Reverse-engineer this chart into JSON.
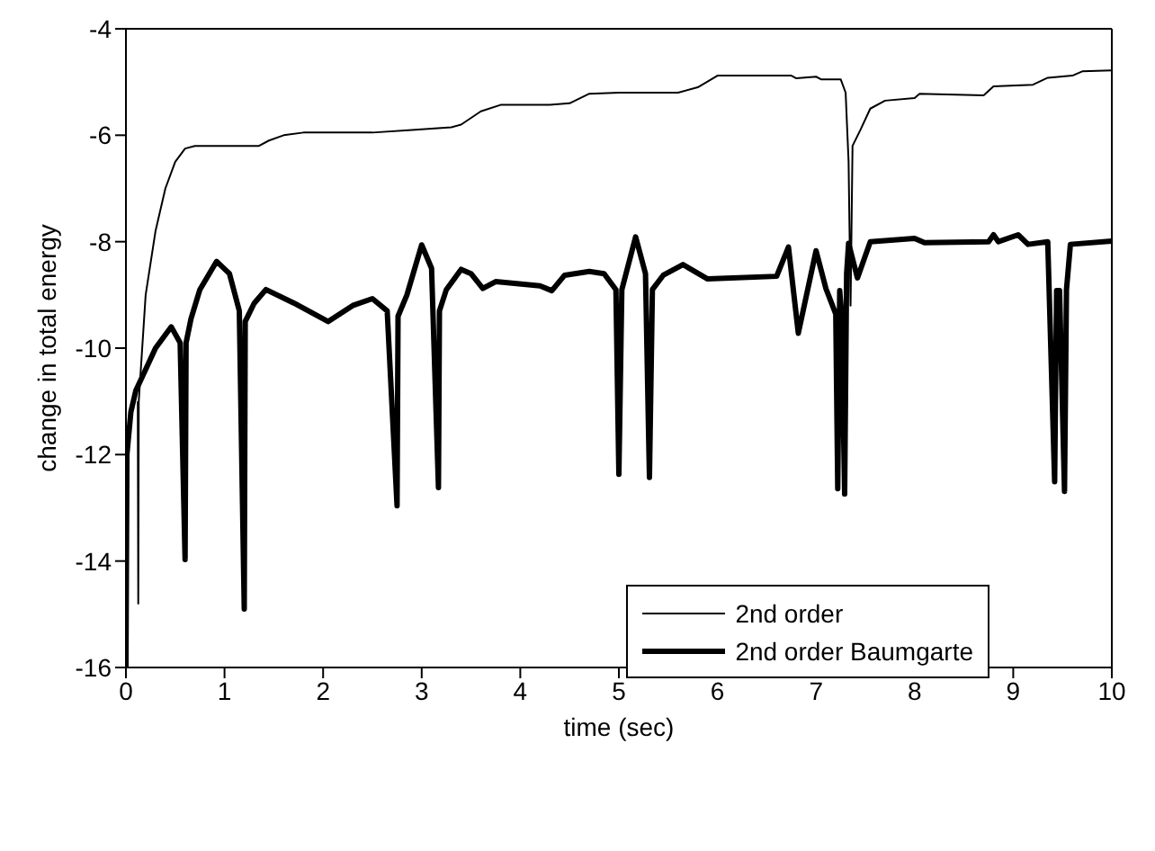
{
  "chart_data": {
    "type": "line",
    "xlabel": "time (sec)",
    "ylabel": "change in total energy",
    "xlim": [
      0,
      10
    ],
    "ylim": [
      -16,
      -4
    ],
    "xticks": [
      0,
      1,
      2,
      3,
      4,
      5,
      6,
      7,
      8,
      9,
      10
    ],
    "yticks": [
      -16,
      -14,
      -12,
      -10,
      -8,
      -6,
      -4
    ],
    "grid": false,
    "legend": "bottom right",
    "marker": "none",
    "line_style": "solid",
    "series": [
      {
        "name": "2nd order",
        "color": "#000000",
        "x": [
          0.12,
          0.125,
          0.13,
          0.2,
          0.3,
          0.4,
          0.5,
          0.6,
          0.7,
          1.0,
          1.35,
          1.45,
          1.6,
          1.8,
          2.5,
          2.9,
          3.3,
          3.4,
          3.6,
          3.8,
          4.3,
          4.5,
          4.7,
          5.0,
          5.6,
          5.8,
          6.0,
          6.5,
          6.75,
          6.8,
          7.0,
          7.05,
          7.25,
          7.3,
          7.33,
          7.35,
          7.37,
          7.45,
          7.55,
          7.7,
          8.0,
          8.05,
          8.7,
          8.8,
          9.2,
          9.35,
          9.6,
          9.7,
          10
        ],
        "values": [
          -11.0,
          -14.8,
          -11.0,
          -9.0,
          -7.8,
          -7.0,
          -6.5,
          -6.25,
          -6.2,
          -6.2,
          -6.2,
          -6.1,
          -6.0,
          -5.95,
          -5.95,
          -5.9,
          -5.85,
          -5.8,
          -5.55,
          -5.43,
          -5.43,
          -5.4,
          -5.22,
          -5.2,
          -5.2,
          -5.1,
          -4.88,
          -4.88,
          -4.88,
          -4.93,
          -4.9,
          -4.95,
          -4.95,
          -5.2,
          -6.5,
          -9.2,
          -6.2,
          -5.9,
          -5.5,
          -5.35,
          -5.3,
          -5.22,
          -5.25,
          -5.08,
          -5.05,
          -4.92,
          -4.88,
          -4.8,
          -4.78
        ]
      },
      {
        "name": "2nd order Baumgarte",
        "color": "#000000",
        "x": [
          0,
          0.01,
          0.05,
          0.1,
          0.2,
          0.3,
          0.46,
          0.55,
          0.6,
          0.61,
          0.66,
          0.75,
          0.92,
          1.05,
          1.15,
          1.2,
          1.21,
          1.3,
          1.42,
          1.7,
          2.05,
          2.3,
          2.5,
          2.65,
          2.75,
          2.76,
          2.85,
          3.0,
          3.1,
          3.17,
          3.18,
          3.25,
          3.4,
          3.5,
          3.62,
          3.75,
          4.2,
          4.32,
          4.45,
          4.7,
          4.85,
          4.97,
          5.0,
          5.03,
          5.17,
          5.27,
          5.31,
          5.34,
          5.45,
          5.65,
          5.9,
          6.6,
          6.72,
          6.82,
          7.0,
          7.1,
          7.2,
          7.22,
          7.24,
          7.26,
          7.29,
          7.31,
          7.33,
          7.42,
          7.55,
          8.0,
          8.1,
          8.75,
          8.8,
          8.85,
          9.05,
          9.15,
          9.35,
          9.42,
          9.44,
          9.47,
          9.52,
          9.54,
          9.58,
          10
        ],
        "values": [
          -16,
          -12.0,
          -11.2,
          -10.8,
          -10.4,
          -10.0,
          -9.6,
          -9.9,
          -13.97,
          -9.9,
          -9.45,
          -8.9,
          -8.37,
          -8.6,
          -9.3,
          -14.9,
          -9.5,
          -9.16,
          -8.9,
          -9.15,
          -9.5,
          -9.2,
          -9.07,
          -9.3,
          -12.96,
          -9.4,
          -9.0,
          -8.06,
          -8.5,
          -12.62,
          -9.3,
          -8.9,
          -8.52,
          -8.6,
          -8.88,
          -8.75,
          -8.83,
          -8.92,
          -8.63,
          -8.56,
          -8.6,
          -8.9,
          -12.37,
          -8.9,
          -7.91,
          -8.6,
          -12.43,
          -8.9,
          -8.63,
          -8.43,
          -8.7,
          -8.65,
          -8.1,
          -9.72,
          -8.17,
          -8.88,
          -9.36,
          -12.64,
          -8.92,
          -9.4,
          -12.74,
          -8.6,
          -8.03,
          -8.68,
          -8.0,
          -7.94,
          -8.02,
          -8.0,
          -7.87,
          -8.0,
          -7.87,
          -8.05,
          -8.0,
          -12.51,
          -8.92,
          -8.92,
          -12.69,
          -8.9,
          -8.05,
          -7.99
        ]
      }
    ]
  }
}
